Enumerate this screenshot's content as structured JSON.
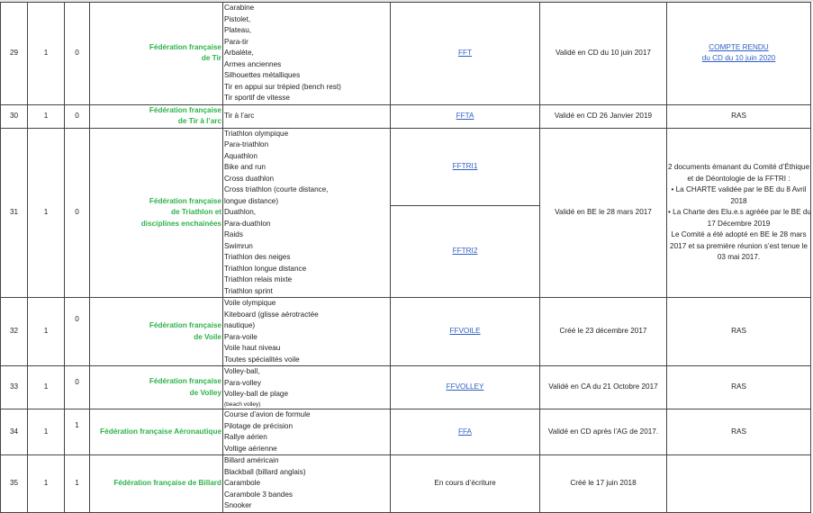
{
  "rows": [
    {
      "num": "29",
      "c1": "1",
      "c2": "0",
      "federation": [
        "Fédération française",
        "de Tir"
      ],
      "disciplines": [
        "Carabine",
        "Pistolet,",
        "Plateau,",
        "Para-tir",
        "Arbalète,",
        "Armes anciennes",
        "Silhouettes métalliques",
        "Tir en appui sur trépied (bench rest)",
        "Tir sportif de vitesse"
      ],
      "link": "FFT",
      "validation": "Validé en CD du 10 juin 2017",
      "remarks_link": [
        "COMPTE RENDU",
        "du CD du 10 juin 2020"
      ]
    },
    {
      "num": "30",
      "c1": "1",
      "c2": "0",
      "federation": [
        "Fédération française",
        "de Tir à l’arc"
      ],
      "disciplines": [
        "Tir à l’arc"
      ],
      "link": "FFTA",
      "validation": "Validé en CD 26 Janvier 2019",
      "remarks": "RAS"
    },
    {
      "num": "31",
      "c1": "1",
      "c2": "0",
      "federation": [
        "Fédération française",
        "de Triathlon et",
        "disciplines enchainées"
      ],
      "disciplines": [
        "Triathlon olympique",
        "Para-triathlon",
        "Aquathlon",
        "Bike and run",
        "Cross duathlon",
        "Cross triathlon  (courte distance,",
        " longue distance)",
        "Duathlon,",
        "Para-duathlon",
        "Raids",
        "Swimrun",
        "Triathlon des neiges",
        "Triathlon longue distance",
        "Triathlon relais mixte",
        "Triathlon sprint"
      ],
      "links": [
        "FFTRI1",
        "FFTRI2"
      ],
      "validation": "Validé en BE le 28 mars 2017",
      "remarks_lines": [
        "2 documents émanant du Comité d’Éthique",
        "et de Déontologie de la FFTRI :",
        "• La CHARTE validée par le BE du 8 Avril",
        "2018",
        "• La Charte des Elu.e.s agréée par le BE du",
        "17 Décembre 2019",
        "Le Comité a été adopté en BE le 28 mars",
        "2017 et sa première réunion s’est tenue le",
        "03 mai 2017."
      ]
    },
    {
      "num": "32",
      "c1": "1",
      "c2": "0",
      "federation": [
        "Fédération française",
        "de Voile"
      ],
      "disciplines": [
        "Voile olympique",
        "Kiteboard (glisse aérotractée",
        " nautique)",
        "Para-voile",
        "Voile haut niveau",
        "Toutes spécialités voile"
      ],
      "link": "FFVOILE",
      "validation": "Créé le 23 décembre 2017",
      "remarks": "RAS"
    },
    {
      "num": "33",
      "c1": "1",
      "c2": "0",
      "federation": [
        "Fédération française",
        "de Volley"
      ],
      "disciplines": [
        "Volley-ball,",
        "Para-volley",
        "Volley-ball de plage"
      ],
      "disciplines_note": "(beach volley)",
      "link": "FFVOLLEY",
      "validation": "Validé en CA du 21 Octobre 2017",
      "remarks": "RAS"
    },
    {
      "num": "34",
      "c1": "1",
      "c2": "1",
      "federation": [
        "Fédération française Aéronautique"
      ],
      "disciplines": [
        "Course d’avion de formule",
        "Pilotage de précision",
        "Rallye aérien",
        "Voltige aérienne"
      ],
      "link": "FFA",
      "validation": "Validé en CD après l’AG de 2017.",
      "remarks": "RAS"
    },
    {
      "num": "35",
      "c1": "1",
      "c2": "1",
      "federation": [
        "Fédération française  de Billard"
      ],
      "disciplines": [
        "Billard américain",
        "Blackball (billard anglais)",
        "Carambole",
        "Carambole 3 bandes",
        "Snooker"
      ],
      "link_text": "En cours d’écriture",
      "validation": "Créé le 17  juin 2018",
      "remarks": ""
    }
  ],
  "colors": {
    "federation": "#2db34a",
    "link": "#2f5fc4"
  }
}
